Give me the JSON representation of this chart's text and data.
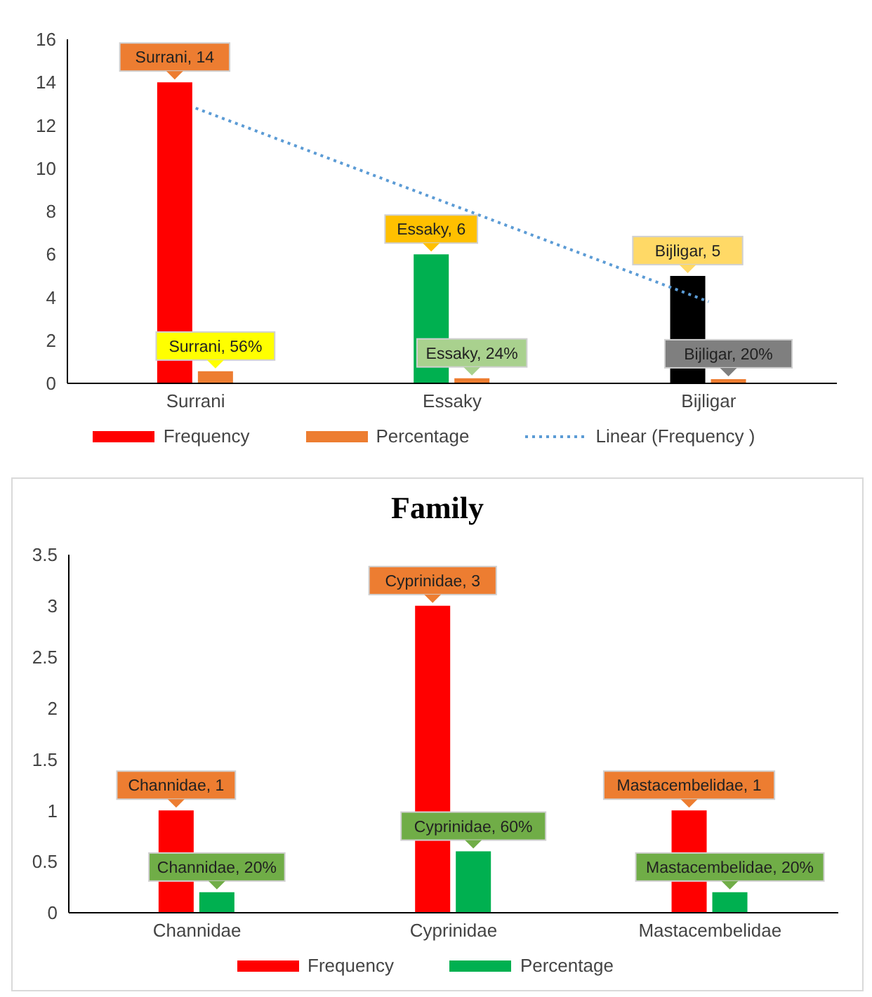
{
  "chart_data": [
    {
      "type": "bar",
      "categories": [
        "Surrani",
        "Essaky",
        "Bijligar"
      ],
      "ylim": [
        0,
        16
      ],
      "yticks": [
        0,
        2,
        4,
        6,
        8,
        10,
        12,
        14,
        16
      ],
      "grid": false,
      "legend": "bottom",
      "series": [
        {
          "name": "Frequency",
          "color": "#ff0000",
          "colors": [
            "#ff0000",
            "#00b050",
            "#000000"
          ],
          "values": [
            14,
            6,
            5
          ],
          "value_labels": [
            "Surrani, 14",
            "Essaky, 6",
            "Bijligar, 5"
          ]
        },
        {
          "name": "Percentage",
          "color": "#ed7d31",
          "values": [
            0.56,
            0.24,
            0.2
          ],
          "value_labels": [
            "Surrani, 56%",
            "Essaky, 24%",
            "Bijligar, 20%"
          ]
        },
        {
          "name": "Linear (Frequency )",
          "type": "line",
          "color": "#5b9bd5",
          "line_style": "dotted",
          "marker": "none",
          "values": [
            12.8,
            8.3,
            3.8
          ]
        }
      ]
    },
    {
      "type": "bar",
      "title": "Family",
      "categories": [
        "Channidae",
        "Cyprinidae",
        "Mastacembelidae"
      ],
      "ylim": [
        0,
        3.5
      ],
      "yticks": [
        0,
        0.5,
        1,
        1.5,
        2,
        2.5,
        3,
        3.5
      ],
      "grid": false,
      "legend": "bottom",
      "series": [
        {
          "name": "Frequency",
          "color": "#ff0000",
          "values": [
            1,
            3,
            1
          ],
          "value_labels": [
            "Channidae, 1",
            "Cyprinidae, 3",
            "Mastacembelidae, 1"
          ]
        },
        {
          "name": "Percentage",
          "color": "#00b050",
          "values": [
            0.2,
            0.6,
            0.2
          ],
          "value_labels": [
            "Channidae, 20%",
            "Cyprinidae, 60%",
            "Mastacembelidae, 20%"
          ]
        }
      ]
    }
  ]
}
